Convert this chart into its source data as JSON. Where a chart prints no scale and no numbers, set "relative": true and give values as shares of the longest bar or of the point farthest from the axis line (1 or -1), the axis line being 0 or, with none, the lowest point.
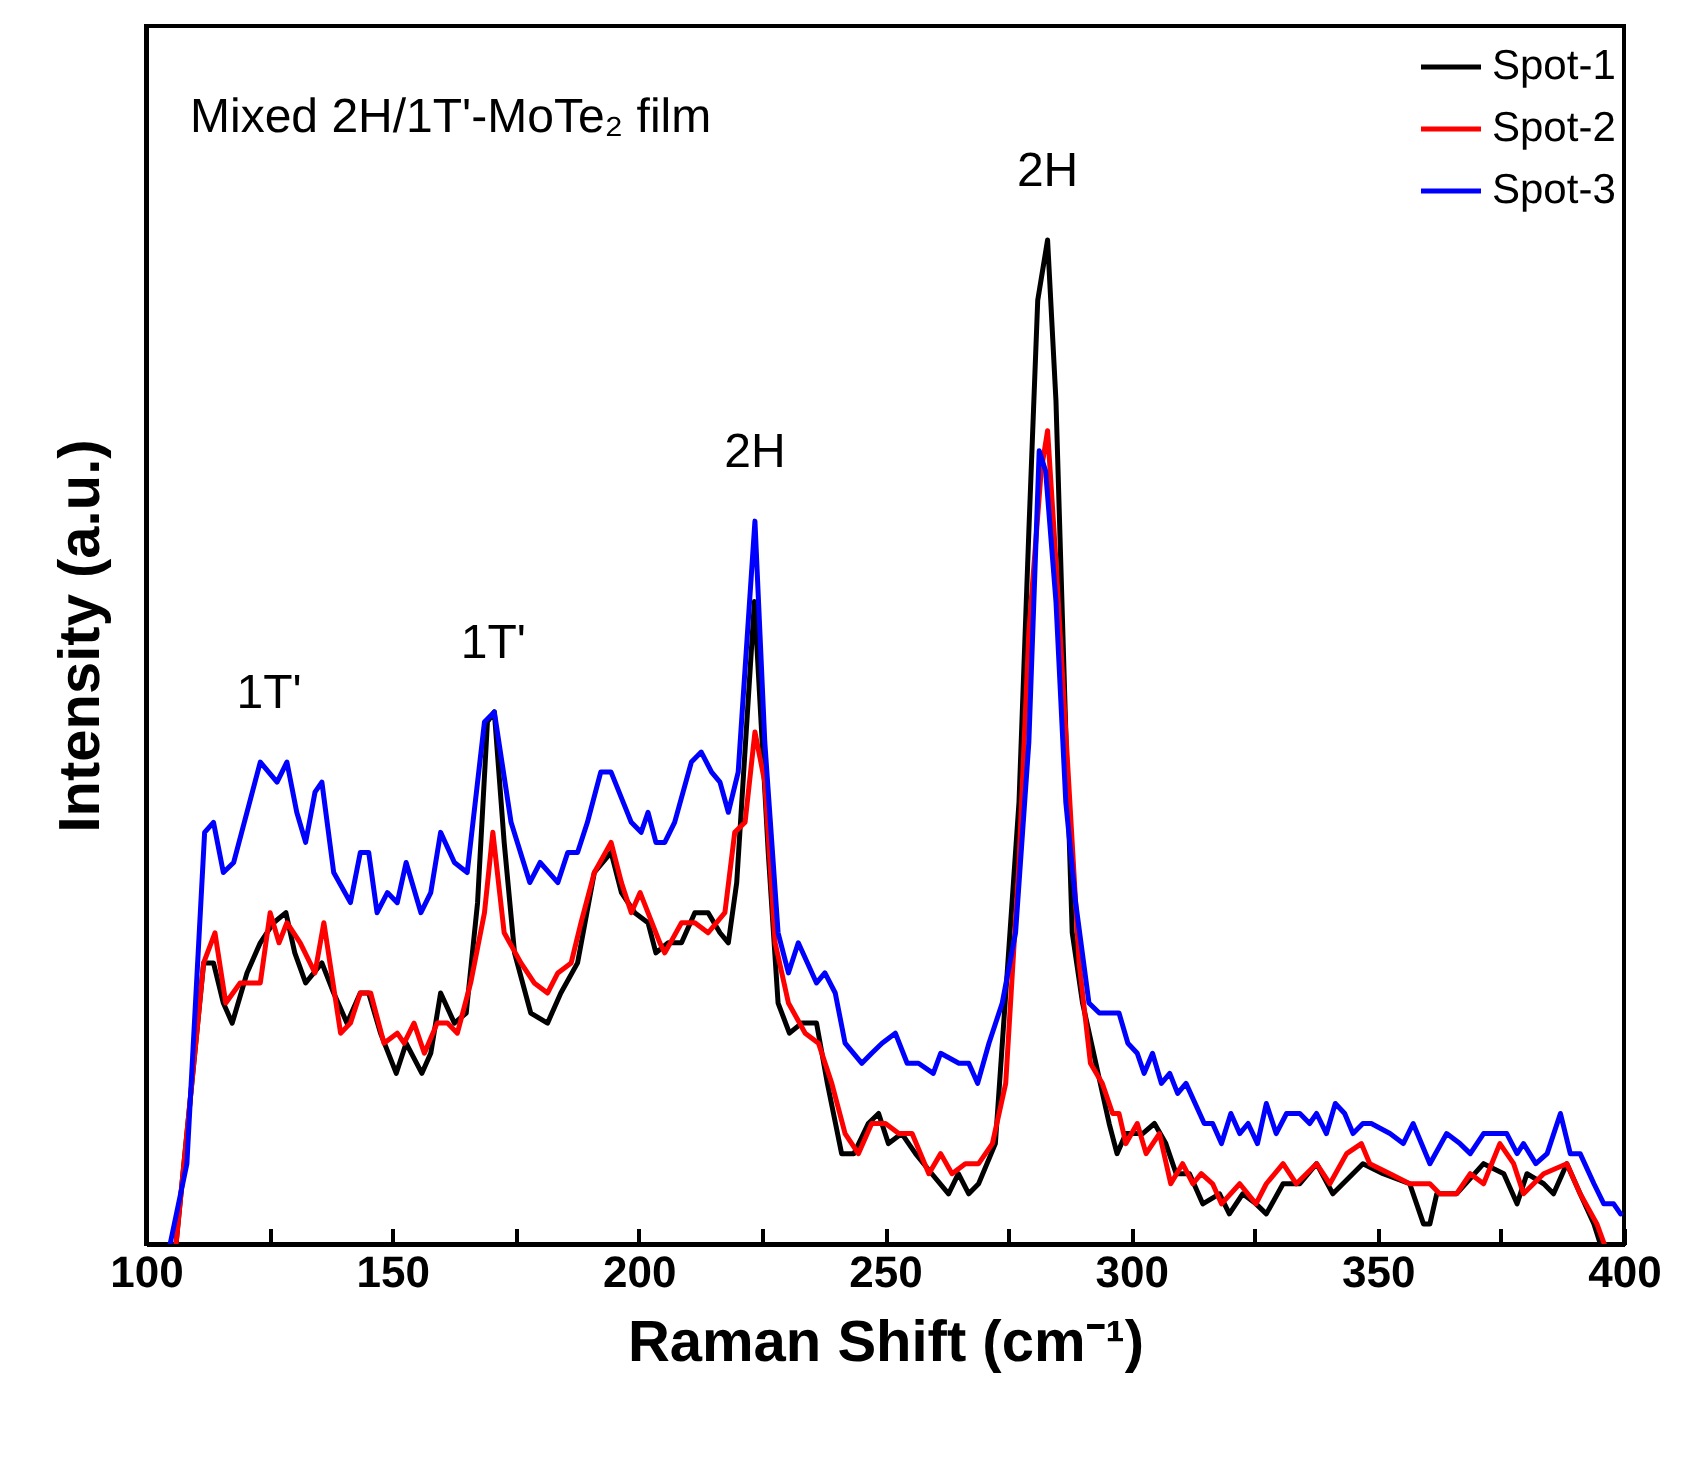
{
  "chart_data": {
    "type": "line",
    "title": "Mixed 2H/1T'-MoTe₂ film",
    "xlabel": "Raman Shift (cm⁻¹)",
    "ylabel": "Intensity (a.u.)",
    "relative": true,
    "xlim": [
      100,
      400
    ],
    "xticks": [
      100,
      {
        "value": 125,
        "label": null
      },
      150,
      {
        "value": 175,
        "label": null
      },
      200,
      {
        "value": 225,
        "label": null
      },
      250,
      {
        "value": 275,
        "label": null
      },
      300,
      {
        "value": 325,
        "label": null
      },
      350,
      {
        "value": 375,
        "label": null
      },
      400
    ],
    "grid": false,
    "legend": "top right",
    "marker": "none",
    "line_style": "solid",
    "annotations": [
      {
        "text": "1T'",
        "x": 125,
        "y": 0.48
      },
      {
        "text": "1T'",
        "x": 170.5,
        "y": 0.53
      },
      {
        "text": "2H",
        "x": 223.6,
        "y": 0.72
      },
      {
        "text": "2H",
        "x": 283,
        "y": 1.0
      }
    ],
    "series": [
      {
        "name": "Spot-1",
        "color": "#000000",
        "x": [
          106.1,
          111.7,
          113.7,
          115.7,
          117.5,
          120.5,
          123.2,
          125.9,
          128.4,
          130.2,
          132.4,
          135.7,
          138.1,
          140.8,
          143.5,
          145.2,
          147.6,
          150.8,
          152.8,
          156,
          157.8,
          159.8,
          162.6,
          165,
          167.3,
          169.3,
          170.7,
          172.7,
          174.8,
          178.1,
          181.5,
          184.2,
          187.6,
          191,
          194.4,
          196.5,
          199.2,
          201.9,
          203.5,
          206,
          208.7,
          211.4,
          214.1,
          216.5,
          218.2,
          219.9,
          223.5,
          226.3,
          228.3,
          230.6,
          233.1,
          236.1,
          238.3,
          241.2,
          243.7,
          246.6,
          248.7,
          250.7,
          253.4,
          256.2,
          259.5,
          262.9,
          264.9,
          267,
          269,
          272.4,
          277.2,
          279.2,
          281,
          283,
          284.7,
          286.7,
          288,
          290.1,
          292.8,
          295.5,
          297.1,
          298.9,
          302.3,
          304.7,
          307,
          309.1,
          311.8,
          314.5,
          317.9,
          319.9,
          322.6,
          325.3,
          327.4,
          330.8,
          334.2,
          337.6,
          340.9,
          347,
          351.1,
          356.5,
          359.3,
          360.6,
          362,
          366,
          371.5,
          375.6,
          378.3,
          380.3,
          383.7,
          385.7,
          388.4,
          391.1,
          393.9,
          395.2
        ],
        "values": [
          0,
          0.28,
          0.28,
          0.24,
          0.22,
          0.27,
          0.3,
          0.32,
          0.33,
          0.29,
          0.26,
          0.28,
          0.25,
          0.22,
          0.25,
          0.25,
          0.21,
          0.17,
          0.2,
          0.17,
          0.19,
          0.25,
          0.22,
          0.23,
          0.34,
          0.52,
          0.53,
          0.4,
          0.29,
          0.23,
          0.22,
          0.25,
          0.28,
          0.37,
          0.39,
          0.35,
          0.33,
          0.32,
          0.29,
          0.3,
          0.3,
          0.33,
          0.33,
          0.31,
          0.3,
          0.36,
          0.64,
          0.39,
          0.24,
          0.21,
          0.22,
          0.22,
          0.16,
          0.09,
          0.09,
          0.12,
          0.13,
          0.1,
          0.11,
          0.09,
          0.07,
          0.05,
          0.07,
          0.05,
          0.06,
          0.1,
          0.44,
          0.71,
          0.94,
          1.0,
          0.84,
          0.51,
          0.31,
          0.24,
          0.18,
          0.12,
          0.09,
          0.11,
          0.11,
          0.12,
          0.1,
          0.07,
          0.07,
          0.04,
          0.05,
          0.03,
          0.05,
          0.04,
          0.03,
          0.06,
          0.06,
          0.08,
          0.05,
          0.08,
          0.07,
          0.06,
          0.02,
          0.02,
          0.05,
          0.05,
          0.08,
          0.07,
          0.04,
          0.07,
          0.06,
          0.05,
          0.08,
          0.05,
          0.02,
          0
        ]
      },
      {
        "name": "Spot-2",
        "color": "#ff0000",
        "x": [
          106.1,
          111.7,
          114,
          116.2,
          119.1,
          121.6,
          123.2,
          125.2,
          127,
          128.6,
          131.3,
          134.3,
          136.1,
          139.5,
          141.5,
          143.5,
          145.6,
          148.3,
          151,
          152.4,
          154.4,
          156.5,
          159.1,
          161.2,
          163.2,
          165.9,
          168.7,
          170.4,
          172.7,
          176.1,
          178.8,
          181.5,
          183.6,
          186.3,
          188.3,
          191,
          194.4,
          196.5,
          198.5,
          200.3,
          204.3,
          205.3,
          208.7,
          211.4,
          214.1,
          217.5,
          219.5,
          221.6,
          223.6,
          225.6,
          227.7,
          230.4,
          233.8,
          236.5,
          239.2,
          241.9,
          244.6,
          247.3,
          250.1,
          252.8,
          255.5,
          258.9,
          261.3,
          263.6,
          266.3,
          269,
          271.8,
          274.5,
          277.2,
          279.2,
          281.7,
          283,
          284.7,
          289.4,
          291.7,
          294.1,
          296.2,
          297.5,
          298.9,
          301.2,
          303,
          305.7,
          308,
          310.4,
          312.5,
          314.2,
          316.5,
          318.3,
          322,
          325.3,
          327.4,
          330.8,
          333.5,
          337.6,
          340.3,
          343.7,
          346.7,
          348.4,
          352.5,
          356.5,
          360.6,
          362.6,
          366,
          368.8,
          371.5,
          374.8,
          377.6,
          379.6,
          383.7,
          388.4,
          391.1,
          394.5,
          396
        ],
        "values": [
          0,
          0.28,
          0.31,
          0.24,
          0.26,
          0.26,
          0.26,
          0.33,
          0.3,
          0.32,
          0.3,
          0.27,
          0.32,
          0.21,
          0.22,
          0.25,
          0.25,
          0.2,
          0.21,
          0.2,
          0.22,
          0.19,
          0.22,
          0.22,
          0.21,
          0.26,
          0.33,
          0.41,
          0.31,
          0.28,
          0.26,
          0.25,
          0.27,
          0.28,
          0.32,
          0.37,
          0.4,
          0.36,
          0.33,
          0.35,
          0.3,
          0.29,
          0.32,
          0.32,
          0.31,
          0.33,
          0.41,
          0.42,
          0.51,
          0.46,
          0.3,
          0.24,
          0.21,
          0.2,
          0.16,
          0.11,
          0.09,
          0.12,
          0.12,
          0.11,
          0.11,
          0.07,
          0.09,
          0.07,
          0.08,
          0.08,
          0.1,
          0.16,
          0.38,
          0.61,
          0.77,
          0.81,
          0.68,
          0.28,
          0.18,
          0.16,
          0.13,
          0.13,
          0.1,
          0.12,
          0.09,
          0.11,
          0.06,
          0.08,
          0.06,
          0.07,
          0.06,
          0.04,
          0.06,
          0.04,
          0.06,
          0.08,
          0.06,
          0.08,
          0.06,
          0.09,
          0.1,
          0.08,
          0.07,
          0.06,
          0.06,
          0.05,
          0.05,
          0.07,
          0.06,
          0.1,
          0.08,
          0.05,
          0.07,
          0.08,
          0.05,
          0.02,
          0
        ]
      },
      {
        "name": "Spot-3",
        "color": "#0000ff",
        "x": [
          104.9,
          108.3,
          111.9,
          113.7,
          115.7,
          117.8,
          123.2,
          126.6,
          128.6,
          130.6,
          132.4,
          134.3,
          135.7,
          138.1,
          141.5,
          143.5,
          145.2,
          146.9,
          149,
          151,
          152.8,
          155.8,
          157.8,
          159.8,
          162.6,
          165.2,
          168.7,
          170.7,
          174.1,
          177.9,
          180,
          183.6,
          185.6,
          187.6,
          189.6,
          192.3,
          194.4,
          198.5,
          200.5,
          201.9,
          203.5,
          205.3,
          207.3,
          210.7,
          212.7,
          214.8,
          216.5,
          218.2,
          220.2,
          223.6,
          225.6,
          228.3,
          230.4,
          232.4,
          236.1,
          237.8,
          239.9,
          241.9,
          245.3,
          247.3,
          249.4,
          252.1,
          254.5,
          256.8,
          259.8,
          261.3,
          265,
          267,
          268.8,
          271.1,
          273.8,
          276.5,
          279.2,
          281.3,
          282.6,
          284.7,
          286.7,
          288.7,
          291.4,
          293.5,
          295.5,
          297.5,
          299.3,
          301.2,
          302.6,
          304.3,
          306.1,
          307.8,
          309.4,
          311.1,
          314.8,
          316.5,
          318.3,
          320.2,
          322,
          323.7,
          325.6,
          327.4,
          329.4,
          331.5,
          334.2,
          336.2,
          337.6,
          339.6,
          341.4,
          343.3,
          345,
          347,
          348.7,
          352.5,
          355.2,
          357.2,
          360.6,
          364,
          366.7,
          368.8,
          371.5,
          374.2,
          376.2,
          378.3,
          379.6,
          382.1,
          384.4,
          387.1,
          389.1,
          391.1,
          393.9,
          395.9,
          397.9,
          399.3
        ],
        "values": [
          0,
          0.08,
          0.41,
          0.42,
          0.37,
          0.38,
          0.48,
          0.46,
          0.48,
          0.43,
          0.4,
          0.45,
          0.46,
          0.37,
          0.34,
          0.39,
          0.39,
          0.33,
          0.35,
          0.34,
          0.38,
          0.33,
          0.35,
          0.41,
          0.38,
          0.37,
          0.52,
          0.53,
          0.42,
          0.36,
          0.38,
          0.36,
          0.39,
          0.39,
          0.42,
          0.47,
          0.47,
          0.42,
          0.41,
          0.43,
          0.4,
          0.4,
          0.42,
          0.48,
          0.49,
          0.47,
          0.46,
          0.43,
          0.47,
          0.72,
          0.5,
          0.31,
          0.27,
          0.3,
          0.26,
          0.27,
          0.25,
          0.2,
          0.18,
          0.19,
          0.2,
          0.21,
          0.18,
          0.18,
          0.17,
          0.19,
          0.18,
          0.18,
          0.16,
          0.2,
          0.24,
          0.31,
          0.5,
          0.79,
          0.77,
          0.64,
          0.44,
          0.34,
          0.24,
          0.23,
          0.23,
          0.23,
          0.2,
          0.19,
          0.17,
          0.19,
          0.16,
          0.17,
          0.15,
          0.16,
          0.12,
          0.12,
          0.1,
          0.13,
          0.11,
          0.12,
          0.1,
          0.14,
          0.11,
          0.13,
          0.13,
          0.12,
          0.13,
          0.11,
          0.14,
          0.13,
          0.11,
          0.12,
          0.12,
          0.11,
          0.1,
          0.12,
          0.08,
          0.11,
          0.1,
          0.09,
          0.11,
          0.11,
          0.11,
          0.09,
          0.1,
          0.08,
          0.09,
          0.13,
          0.09,
          0.09,
          0.06,
          0.04,
          0.04,
          0.03
        ]
      }
    ]
  }
}
